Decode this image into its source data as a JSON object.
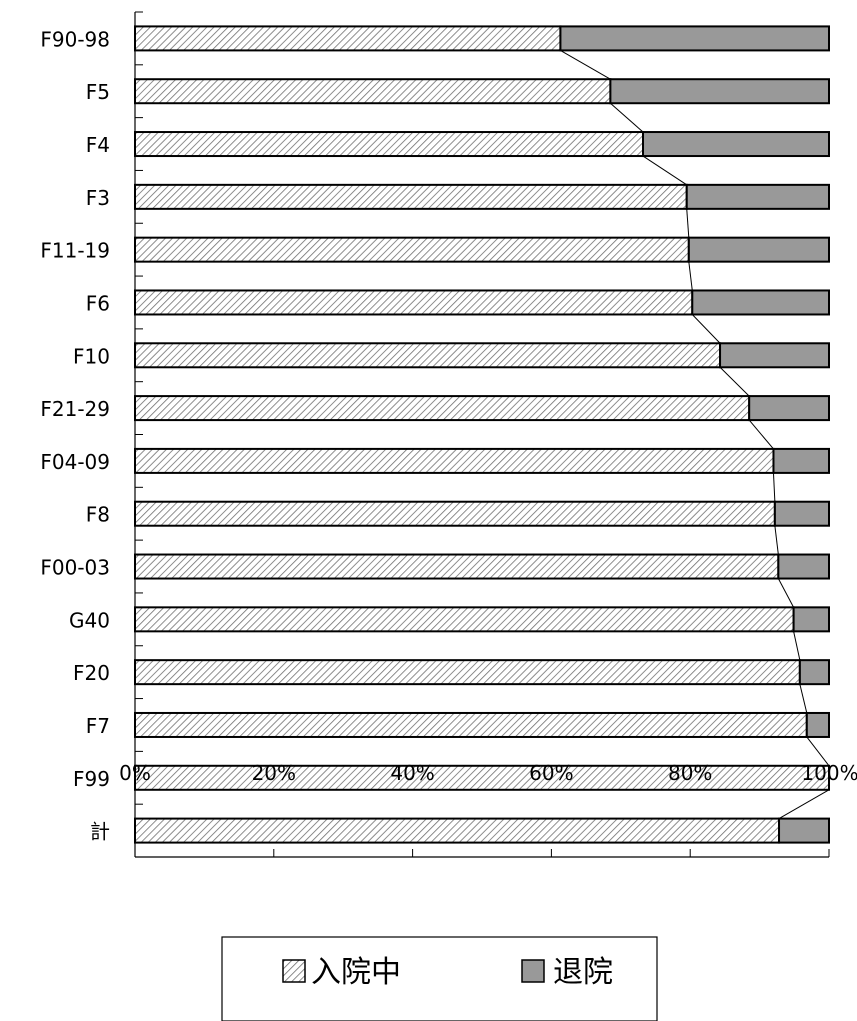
{
  "chart_data": {
    "type": "bar",
    "orientation": "horizontal",
    "stacked": "percent",
    "categories": [
      "F90-98",
      "F5",
      "F4",
      "F3",
      "F11-19",
      "F6",
      "F10",
      "F21-29",
      "F04-09",
      "F8",
      "F00-03",
      "G40",
      "F20",
      "F7",
      "F99",
      "計"
    ],
    "series": [
      {
        "name": "入院中",
        "values": [
          61.3,
          68.5,
          73.2,
          79.5,
          79.8,
          80.3,
          84.3,
          88.5,
          92.0,
          92.2,
          92.7,
          94.9,
          95.8,
          96.8,
          100.0,
          92.8
        ]
      },
      {
        "name": "退院",
        "values": [
          38.7,
          31.5,
          26.8,
          20.5,
          20.2,
          19.7,
          15.7,
          11.5,
          8.0,
          7.8,
          7.3,
          5.1,
          4.2,
          3.2,
          0.0,
          7.2
        ]
      }
    ],
    "xticks": [
      "0%",
      "20%",
      "40%",
      "60%",
      "80%",
      "100%"
    ],
    "xlim": [
      0,
      100
    ],
    "series_lines": true,
    "grid": false,
    "legend": "bottom",
    "colors": {
      "hatched_fill": "#ffffff",
      "hatch_stroke": "#707070",
      "solid_fill": "#999999",
      "outline": "#000000"
    }
  }
}
